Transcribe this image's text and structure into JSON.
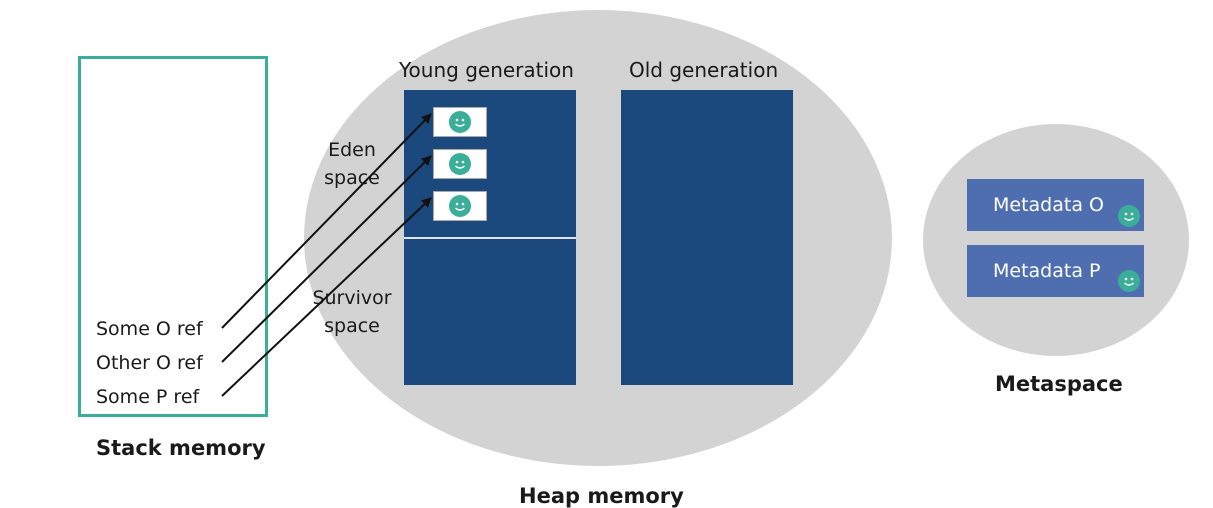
{
  "stack": {
    "refs": [
      "Some O ref",
      "Other O ref",
      "Some P ref"
    ],
    "label": "Stack memory"
  },
  "heap": {
    "young_title": "Young generation",
    "old_title": "Old generation",
    "eden_label": [
      "Eden",
      "space"
    ],
    "survivor_label": [
      "Survivor",
      "space"
    ],
    "label": "Heap memory"
  },
  "metaspace": {
    "items": [
      "Metadata O",
      "Metadata P"
    ],
    "label": "Metaspace"
  },
  "colors": {
    "stack_border": "#3aae98",
    "heap_bg": "#d3d3d3",
    "panel": "#1b487d",
    "metadata_box": "#4f6eb0",
    "smiley": "#3aae98"
  },
  "icons": {
    "object": "smiley-face-icon",
    "arrow": "arrow-right-icon"
  }
}
